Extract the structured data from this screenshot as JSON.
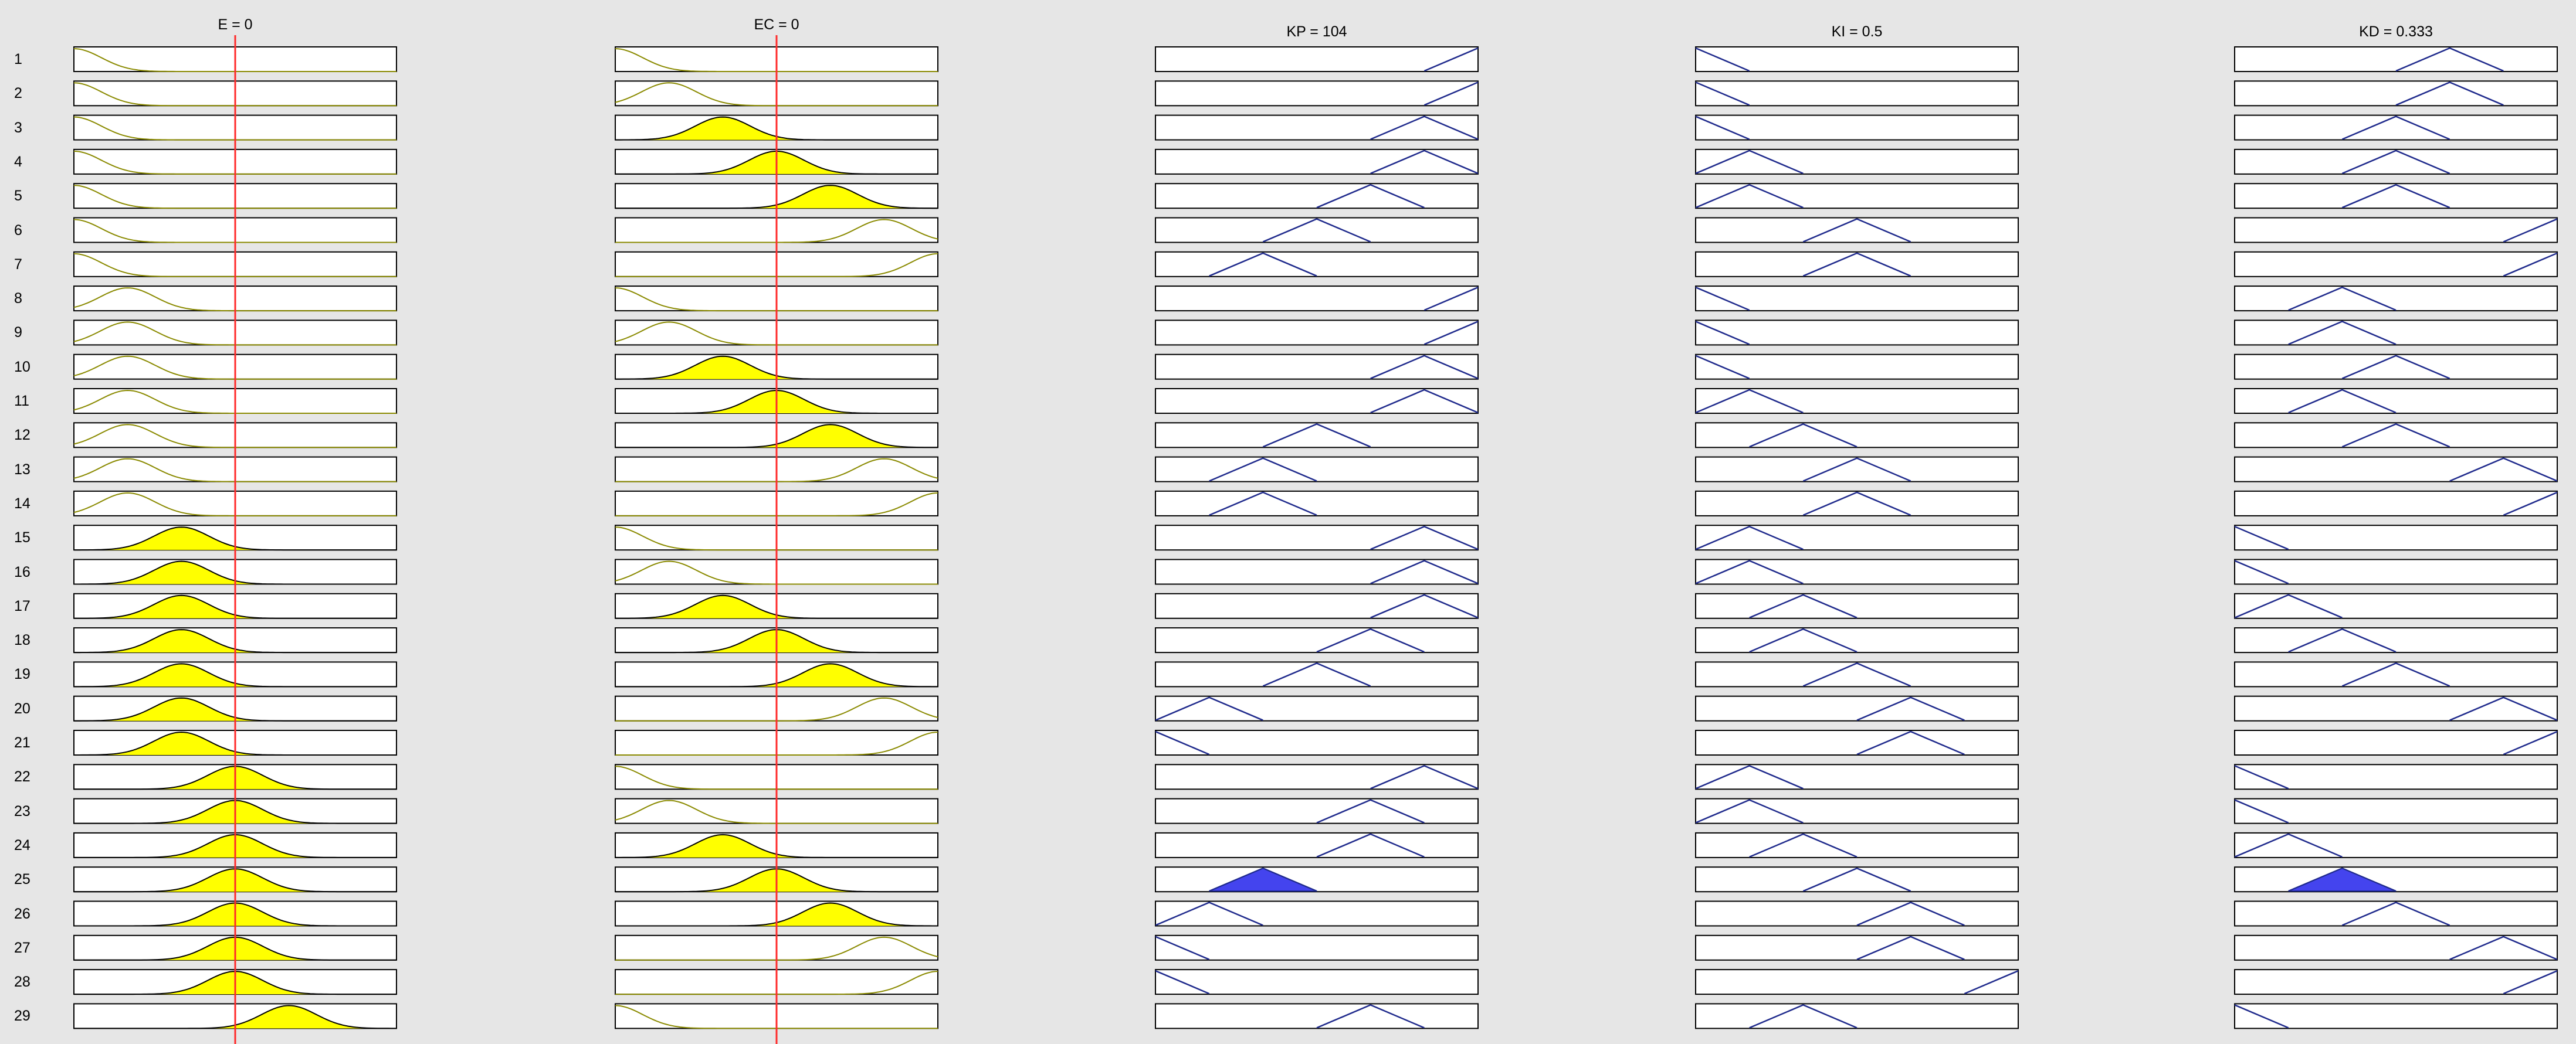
{
  "window": {
    "background": "#e6e6e6"
  },
  "columns": [
    {
      "id": "E",
      "title": "E = 0",
      "kind": "input",
      "value_fraction": 0.5,
      "mf_shape": "gaussian"
    },
    {
      "id": "EC",
      "title": "EC = 0",
      "kind": "input",
      "value_fraction": 0.5,
      "mf_shape": "gaussian"
    },
    {
      "id": "KP",
      "title": "KP = 104",
      "kind": "output",
      "mf_shape": "triangular"
    },
    {
      "id": "KI",
      "title": "KI = 0.5",
      "kind": "output",
      "mf_shape": "triangular"
    },
    {
      "id": "KD",
      "title": "KD = 0.333",
      "kind": "output",
      "mf_shape": "triangular"
    }
  ],
  "input_mf_labels": [
    "NB",
    "NM",
    "NS",
    "ZO",
    "PS",
    "PM",
    "PB"
  ],
  "output_mf_labels": [
    "NB",
    "NM",
    "NS",
    "ZO",
    "PS",
    "PM",
    "PB"
  ],
  "rules": [
    {
      "number": "1",
      "E": "NB",
      "EC": "NB",
      "KP": "PB",
      "KI": "NB",
      "KD": "PS"
    },
    {
      "number": "2",
      "E": "NB",
      "EC": "NM",
      "KP": "PB",
      "KI": "NB",
      "KD": "PS"
    },
    {
      "number": "3",
      "E": "NB",
      "EC": "NS",
      "KP": "PM",
      "KI": "NB",
      "KD": "ZO"
    },
    {
      "number": "4",
      "E": "NB",
      "EC": "ZO",
      "KP": "PM",
      "KI": "NM",
      "KD": "ZO"
    },
    {
      "number": "5",
      "E": "NB",
      "EC": "PS",
      "KP": "PS",
      "KI": "NM",
      "KD": "ZO"
    },
    {
      "number": "6",
      "E": "NB",
      "EC": "PM",
      "KP": "ZO",
      "KI": "ZO",
      "KD": "PB"
    },
    {
      "number": "7",
      "E": "NB",
      "EC": "PB",
      "KP": "NS",
      "KI": "ZO",
      "KD": "PB"
    },
    {
      "number": "8",
      "E": "NM",
      "EC": "NB",
      "KP": "PB",
      "KI": "NB",
      "KD": "NS"
    },
    {
      "number": "9",
      "E": "NM",
      "EC": "NM",
      "KP": "PB",
      "KI": "NB",
      "KD": "NS"
    },
    {
      "number": "10",
      "E": "NM",
      "EC": "NS",
      "KP": "PM",
      "KI": "NB",
      "KD": "ZO"
    },
    {
      "number": "11",
      "E": "NM",
      "EC": "ZO",
      "KP": "PM",
      "KI": "NM",
      "KD": "NS"
    },
    {
      "number": "12",
      "E": "NM",
      "EC": "PS",
      "KP": "ZO",
      "KI": "NS",
      "KD": "ZO"
    },
    {
      "number": "13",
      "E": "NM",
      "EC": "PM",
      "KP": "NS",
      "KI": "ZO",
      "KD": "PM"
    },
    {
      "number": "14",
      "E": "NM",
      "EC": "PB",
      "KP": "NS",
      "KI": "ZO",
      "KD": "PB"
    },
    {
      "number": "15",
      "E": "NS",
      "EC": "NB",
      "KP": "PM",
      "KI": "NM",
      "KD": "NB"
    },
    {
      "number": "16",
      "E": "NS",
      "EC": "NM",
      "KP": "PM",
      "KI": "NM",
      "KD": "NB"
    },
    {
      "number": "17",
      "E": "NS",
      "EC": "NS",
      "KP": "PM",
      "KI": "NS",
      "KD": "NM"
    },
    {
      "number": "18",
      "E": "NS",
      "EC": "ZO",
      "KP": "PS",
      "KI": "NS",
      "KD": "NS"
    },
    {
      "number": "19",
      "E": "NS",
      "EC": "PS",
      "KP": "ZO",
      "KI": "ZO",
      "KD": "ZO"
    },
    {
      "number": "20",
      "E": "NS",
      "EC": "PM",
      "KP": "NM",
      "KI": "PS",
      "KD": "PM"
    },
    {
      "number": "21",
      "E": "NS",
      "EC": "PB",
      "KP": "NB",
      "KI": "PS",
      "KD": "PB"
    },
    {
      "number": "22",
      "E": "ZO",
      "EC": "NB",
      "KP": "PM",
      "KI": "NM",
      "KD": "NB"
    },
    {
      "number": "23",
      "E": "ZO",
      "EC": "NM",
      "KP": "PS",
      "KI": "NM",
      "KD": "NB"
    },
    {
      "number": "24",
      "E": "ZO",
      "EC": "NS",
      "KP": "PS",
      "KI": "NS",
      "KD": "NM"
    },
    {
      "number": "25",
      "E": "ZO",
      "EC": "ZO",
      "KP": "NS",
      "KI": "ZO",
      "KD": "NS"
    },
    {
      "number": "26",
      "E": "ZO",
      "EC": "PS",
      "KP": "NM",
      "KI": "PS",
      "KD": "ZO"
    },
    {
      "number": "27",
      "E": "ZO",
      "EC": "PM",
      "KP": "NB",
      "KI": "PS",
      "KD": "PM"
    },
    {
      "number": "28",
      "E": "ZO",
      "EC": "PB",
      "KP": "NB",
      "KI": "PB",
      "KD": "PB"
    },
    {
      "number": "29",
      "E": "PS",
      "EC": "NB",
      "KP": "PS",
      "KI": "NS",
      "KD": "NB"
    }
  ],
  "colors": {
    "input_curve": "#8a8a00",
    "input_fill": "#ffff00",
    "output_line": "#1f2a8c",
    "output_fill": "#4444ee",
    "crosshair": "#ff2a2a",
    "box_border": "#000000",
    "box_fill": "#ffffff",
    "baseline": "#000000"
  }
}
